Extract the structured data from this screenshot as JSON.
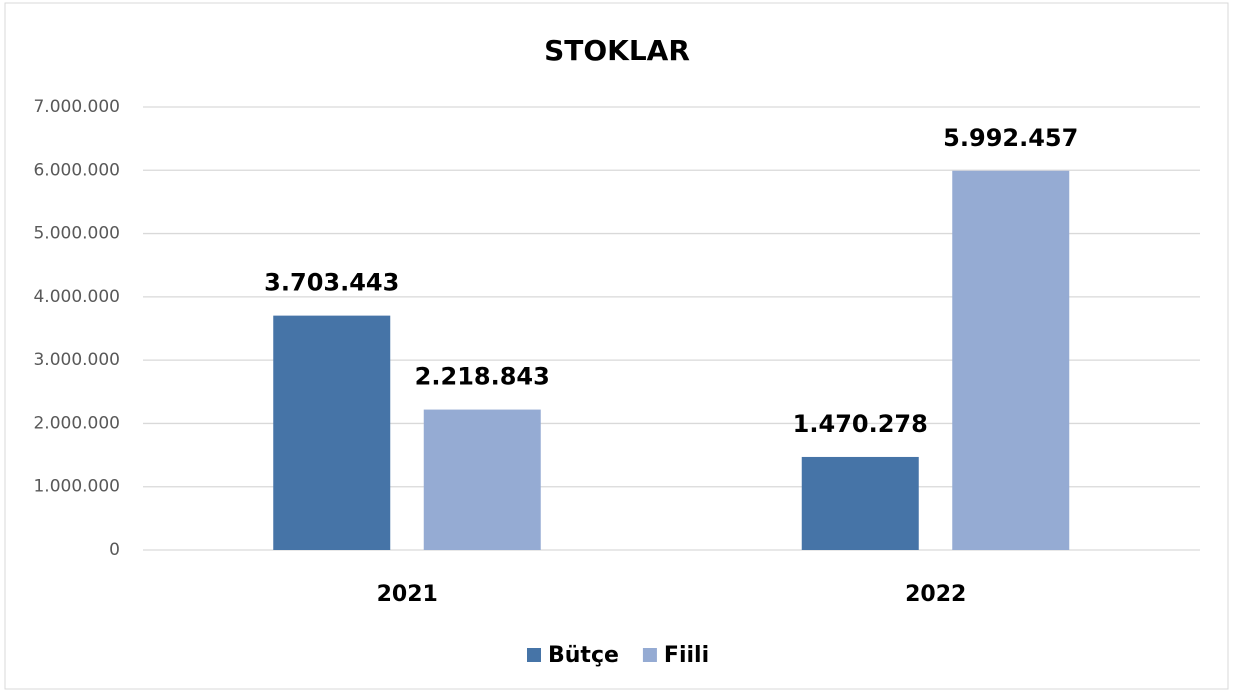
{
  "chart_data": {
    "type": "bar",
    "title": "STOKLAR",
    "categories": [
      "2021",
      "2022"
    ],
    "series": [
      {
        "name": "Bütçe",
        "color": "#4674a7",
        "values": [
          3703443,
          1470278
        ],
        "value_labels": [
          "3.703.443",
          "1.470.278"
        ]
      },
      {
        "name": "Fiili",
        "color": "#95abd3",
        "values": [
          2218843,
          5992457
        ],
        "value_labels": [
          "2.218.843",
          "5.992.457"
        ]
      }
    ],
    "ylim": [
      0,
      7000000
    ],
    "yticks": [
      0,
      {
        "value": 1000000,
        "label": "1.000.000"
      },
      {
        "value": 2000000,
        "label": "2.000.000"
      },
      {
        "value": 3000000,
        "label": "3.000.000"
      },
      {
        "value": 4000000,
        "label": "4.000.000"
      },
      {
        "value": 5000000,
        "label": "5.000.000"
      },
      {
        "value": 6000000,
        "label": "6.000.000"
      },
      {
        "value": 7000000,
        "label": "7.000.000"
      }
    ],
    "grid": true,
    "legend": "bottom"
  }
}
